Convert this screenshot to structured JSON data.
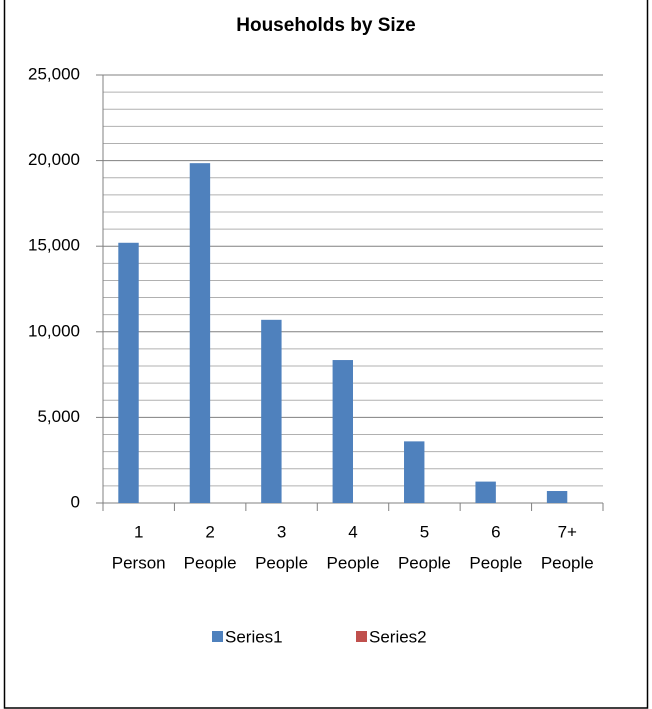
{
  "chart_data": {
    "type": "bar",
    "title": "Households by Size",
    "categories": [
      [
        "1",
        "Person"
      ],
      [
        "2",
        "People"
      ],
      [
        "3",
        "People"
      ],
      [
        "4",
        "People"
      ],
      [
        "5",
        "People"
      ],
      [
        "6",
        "People"
      ],
      [
        "7+",
        "People"
      ]
    ],
    "series": [
      {
        "name": "Series1",
        "color": "#4f81bd",
        "values": [
          15200,
          19850,
          10700,
          8350,
          3600,
          1250,
          700
        ]
      },
      {
        "name": "Series2",
        "color": "#c0504d",
        "values": [
          null,
          null,
          null,
          null,
          null,
          null,
          null
        ]
      }
    ],
    "ylim": [
      0,
      25000
    ],
    "yticks": [
      {
        "value": 0,
        "label": "0"
      },
      {
        "value": 5000,
        "label": "5,000"
      },
      {
        "value": 10000,
        "label": "10,000"
      },
      {
        "value": 15000,
        "label": "15,000"
      },
      {
        "value": 20000,
        "label": "20,000"
      },
      {
        "value": 25000,
        "label": "25,000"
      }
    ],
    "minor_yticks": [
      1000,
      2000,
      3000,
      4000,
      6000,
      7000,
      8000,
      9000,
      11000,
      12000,
      13000,
      14000,
      16000,
      17000,
      18000,
      19000,
      21000,
      22000,
      23000,
      24000
    ],
    "grid": true,
    "legend": "bottom"
  }
}
